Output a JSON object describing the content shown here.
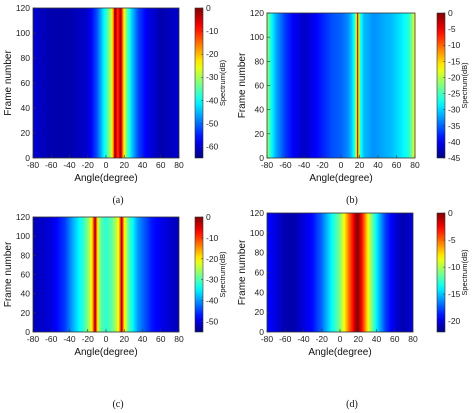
{
  "chart_data": [
    {
      "type": "heatmap",
      "panel": "a",
      "caption": "(a)",
      "xlabel": "Angle(degree)",
      "ylabel": "Frame number",
      "colorbar_label": "Spectrum(dB)",
      "xlim": [
        -80,
        80
      ],
      "ylim": [
        0,
        120
      ],
      "xticks": [
        -80,
        -60,
        -40,
        -20,
        0,
        20,
        40,
        60,
        80
      ],
      "yticks": [
        0,
        20,
        40,
        60,
        80,
        100,
        120
      ],
      "clim": [
        -65,
        0
      ],
      "cticks": [
        0,
        -10,
        -20,
        -30,
        -40,
        -50,
        -60
      ],
      "profile": [
        [
          -80,
          -60
        ],
        [
          -60,
          -62
        ],
        [
          -40,
          -62
        ],
        [
          -20,
          -60
        ],
        [
          -10,
          -52
        ],
        [
          -5,
          -45
        ],
        [
          0,
          -38
        ],
        [
          5,
          -30
        ],
        [
          8,
          -18
        ],
        [
          9,
          -8
        ],
        [
          10,
          0
        ],
        [
          11,
          -5
        ],
        [
          13,
          -12
        ],
        [
          15,
          -5
        ],
        [
          16,
          0
        ],
        [
          17,
          -8
        ],
        [
          19,
          -20
        ],
        [
          22,
          -32
        ],
        [
          27,
          -42
        ],
        [
          35,
          -52
        ],
        [
          45,
          -58
        ],
        [
          60,
          -62
        ],
        [
          80,
          -60
        ]
      ]
    },
    {
      "type": "heatmap",
      "panel": "b",
      "caption": "(b)",
      "xlabel": "Angle(degree)",
      "ylabel": "Frame number",
      "colorbar_label": "Spectrum(dB)",
      "xlim": [
        -80,
        80
      ],
      "ylim": [
        0,
        120
      ],
      "xticks": [
        -80,
        -60,
        -40,
        -20,
        0,
        20,
        40,
        60,
        80
      ],
      "yticks": [
        0,
        20,
        40,
        60,
        80,
        100,
        120
      ],
      "clim": [
        -45,
        0
      ],
      "cticks": [
        0,
        -5,
        -10,
        -15,
        -20,
        -25,
        -30,
        -35,
        -40,
        -45
      ],
      "profile": [
        [
          -80,
          -20
        ],
        [
          -78,
          -24
        ],
        [
          -75,
          -28
        ],
        [
          -70,
          -32
        ],
        [
          -60,
          -37
        ],
        [
          -50,
          -40
        ],
        [
          -40,
          -42
        ],
        [
          -30,
          -40
        ],
        [
          -20,
          -38
        ],
        [
          -10,
          -36
        ],
        [
          0,
          -35
        ],
        [
          8,
          -33
        ],
        [
          12,
          -30
        ],
        [
          15,
          -26
        ],
        [
          17,
          -15
        ],
        [
          18,
          0
        ],
        [
          19,
          -15
        ],
        [
          21,
          -27
        ],
        [
          25,
          -31
        ],
        [
          35,
          -33
        ],
        [
          45,
          -32
        ],
        [
          55,
          -31
        ],
        [
          65,
          -29
        ],
        [
          72,
          -27
        ],
        [
          76,
          -24
        ],
        [
          78,
          -20
        ],
        [
          80,
          -16
        ]
      ]
    },
    {
      "type": "heatmap",
      "panel": "c",
      "caption": "(c)",
      "xlabel": "Angle(degree)",
      "ylabel": "Frame number",
      "colorbar_label": "Spectrum(dB)",
      "xlim": [
        -80,
        80
      ],
      "ylim": [
        0,
        120
      ],
      "xticks": [
        -80,
        -60,
        -40,
        -20,
        0,
        20,
        40,
        60,
        80
      ],
      "yticks": [
        0,
        20,
        40,
        60,
        80,
        100,
        120
      ],
      "clim": [
        -55,
        0
      ],
      "cticks": [
        0,
        -10,
        -20,
        -30,
        -40,
        -50
      ],
      "profile": [
        [
          -80,
          -52
        ],
        [
          -60,
          -50
        ],
        [
          -45,
          -45
        ],
        [
          -35,
          -38
        ],
        [
          -25,
          -32
        ],
        [
          -18,
          -25
        ],
        [
          -15,
          -18
        ],
        [
          -13,
          -8
        ],
        [
          -12,
          0
        ],
        [
          -11,
          -8
        ],
        [
          -9,
          -22
        ],
        [
          -5,
          -30
        ],
        [
          0,
          -32
        ],
        [
          5,
          -30
        ],
        [
          10,
          -26
        ],
        [
          14,
          -20
        ],
        [
          16,
          -10
        ],
        [
          17,
          0
        ],
        [
          18,
          -8
        ],
        [
          20,
          -20
        ],
        [
          25,
          -30
        ],
        [
          35,
          -40
        ],
        [
          50,
          -47
        ],
        [
          65,
          -50
        ],
        [
          80,
          -52
        ]
      ]
    },
    {
      "type": "heatmap",
      "panel": "d",
      "caption": "(d)",
      "xlabel": "Angle(degree)",
      "ylabel": "Frame number",
      "colorbar_label": "Spectrum(dB)",
      "xlim": [
        -80,
        80
      ],
      "ylim": [
        0,
        120
      ],
      "xticks": [
        -80,
        -60,
        -40,
        -20,
        0,
        20,
        40,
        60,
        80
      ],
      "yticks": [
        0,
        20,
        40,
        60,
        80,
        100,
        120
      ],
      "clim": [
        -22,
        0
      ],
      "cticks": [
        0,
        -5,
        -10,
        -15,
        -20
      ],
      "profile": [
        [
          -80,
          -19
        ],
        [
          -70,
          -20
        ],
        [
          -60,
          -21
        ],
        [
          -50,
          -21
        ],
        [
          -40,
          -20
        ],
        [
          -30,
          -19
        ],
        [
          -20,
          -17
        ],
        [
          -10,
          -14
        ],
        [
          0,
          -11
        ],
        [
          5,
          -8
        ],
        [
          10,
          -5
        ],
        [
          14,
          -3
        ],
        [
          17,
          -1
        ],
        [
          19,
          0
        ],
        [
          21,
          -1
        ],
        [
          24,
          -3
        ],
        [
          28,
          -6
        ],
        [
          33,
          -10
        ],
        [
          40,
          -14
        ],
        [
          50,
          -18
        ],
        [
          60,
          -20
        ],
        [
          70,
          -21
        ],
        [
          80,
          -20
        ]
      ]
    }
  ]
}
